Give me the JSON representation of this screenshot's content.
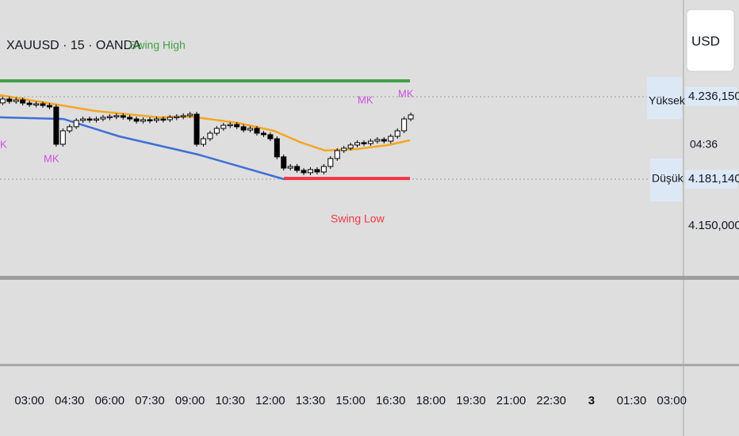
{
  "chart_data": {
    "type": "candlestick",
    "title": "XAUUSD · 15 · OANDA",
    "x": [
      -1,
      -0.75,
      -0.5,
      -0.25,
      0,
      0.25,
      0.5,
      0.75,
      1,
      1.25,
      1.5,
      1.75,
      2,
      2.25,
      2.5,
      2.75,
      3,
      3.25,
      3.5,
      3.75,
      4,
      4.25,
      4.5,
      4.75,
      5,
      5.25,
      5.5,
      5.75,
      6,
      6.25,
      6.5,
      6.75,
      7,
      7.25,
      7.5,
      7.75,
      8,
      8.25,
      8.5,
      8.75,
      9,
      9.25,
      9.5,
      9.75,
      10,
      10.25,
      10.5,
      10.75,
      11,
      11.25,
      11.5,
      11.75,
      12,
      12.25,
      12.5,
      12.75,
      13,
      13.25,
      13.5,
      13.75,
      14,
      14.25
    ],
    "open": [
      4232000,
      4234600,
      4233000,
      4234000,
      4231900,
      4230900,
      4231400,
      4230300,
      4229300,
      4204400,
      4213400,
      4216100,
      4220300,
      4221300,
      4220800,
      4221300,
      4222400,
      4222900,
      4223500,
      4222400,
      4221300,
      4219800,
      4220800,
      4220300,
      4221300,
      4220800,
      4222400,
      4222900,
      4223500,
      4224500,
      4204400,
      4208100,
      4211800,
      4215000,
      4217100,
      4217600,
      4216100,
      4213900,
      4215000,
      4211800,
      4210800,
      4208100,
      4196000,
      4188500,
      4189600,
      4187000,
      4185400,
      4187500,
      4185900,
      4189600,
      4194900,
      4200200,
      4201800,
      4203900,
      4205500,
      4204900,
      4206500,
      4207600,
      4206500,
      4209700,
      4213400,
      4221300
    ],
    "close": [
      4234600,
      4233000,
      4234000,
      4231900,
      4230900,
      4231400,
      4230300,
      4229300,
      4204400,
      4213400,
      4216100,
      4220300,
      4221300,
      4220800,
      4221300,
      4222400,
      4222900,
      4223500,
      4222400,
      4221300,
      4219800,
      4220800,
      4220300,
      4221300,
      4220800,
      4222400,
      4222900,
      4223500,
      4224500,
      4204400,
      4208100,
      4211800,
      4215000,
      4217100,
      4217600,
      4216100,
      4213900,
      4215000,
      4211800,
      4210800,
      4208100,
      4196000,
      4188500,
      4189600,
      4187000,
      4185400,
      4187500,
      4185900,
      4189600,
      4194900,
      4200200,
      4201800,
      4203900,
      4205500,
      4204900,
      4206500,
      4207600,
      4206500,
      4209700,
      4213400,
      4221300,
      4224000
    ],
    "up_color": "#ffffff",
    "down_color": "#000000",
    "overlays": [
      {
        "color": "#f5a623",
        "x": [
          -1.1,
          0.68,
          2.46,
          4.83,
          6.01,
          7.79,
          9.13,
          10.16,
          11.05,
          12.24,
          13.42,
          14.22
        ],
        "values": [
          4237200,
          4231900,
          4226600,
          4222400,
          4222900,
          4218700,
          4213400,
          4205500,
          4200200,
          4201200,
          4203900,
          4207100
        ]
      },
      {
        "color": "#3d6fd6",
        "x": [
          -1.1,
          1.27,
          3.35,
          6.31,
          9.51
        ],
        "values": [
          4222400,
          4221300,
          4209700,
          4197500,
          4181140
        ]
      }
    ],
    "levels": [
      {
        "label": "Swing High",
        "value": 4246700,
        "color": "#43a047"
      },
      {
        "label": "Swing Low",
        "value": 4181600,
        "color": "#f23645"
      }
    ],
    "markers": [
      {
        "label": "Yüksek",
        "value": 4236150,
        "value_label": "4.236,150"
      },
      {
        "label": "Düşük",
        "value": 4181140,
        "value_label": "4.181,140"
      }
    ],
    "annotations": [
      "MK",
      "MK",
      "MK",
      "FK"
    ],
    "currency": "USD",
    "countdown": "04:36",
    "xlim": [
      -1.1,
      24.44
    ],
    "ylim": [
      4115500,
      4300700
    ],
    "xticks": [
      {
        "value": 0,
        "label": "03:00"
      },
      {
        "value": 1.5,
        "label": "04:30"
      },
      {
        "value": 3,
        "label": "06:00"
      },
      {
        "value": 4.5,
        "label": "07:30"
      },
      {
        "value": 6,
        "label": "09:00"
      },
      {
        "value": 7.5,
        "label": "10:30"
      },
      {
        "value": 9,
        "label": "12:00"
      },
      {
        "value": 10.5,
        "label": "13:30"
      },
      {
        "value": 12,
        "label": "15:00"
      },
      {
        "value": 13.5,
        "label": "16:30"
      },
      {
        "value": 15,
        "label": "18:00"
      },
      {
        "value": 16.5,
        "label": "19:30"
      },
      {
        "value": 18,
        "label": "21:00"
      },
      {
        "value": 19.5,
        "label": "22:30"
      },
      {
        "value": 21,
        "label": "3"
      },
      {
        "value": 22.5,
        "label": "01:30"
      },
      {
        "value": 24,
        "label": "03:00"
      }
    ],
    "yticks": [
      {
        "value": 4150000,
        "label": "4.150,000"
      }
    ]
  }
}
